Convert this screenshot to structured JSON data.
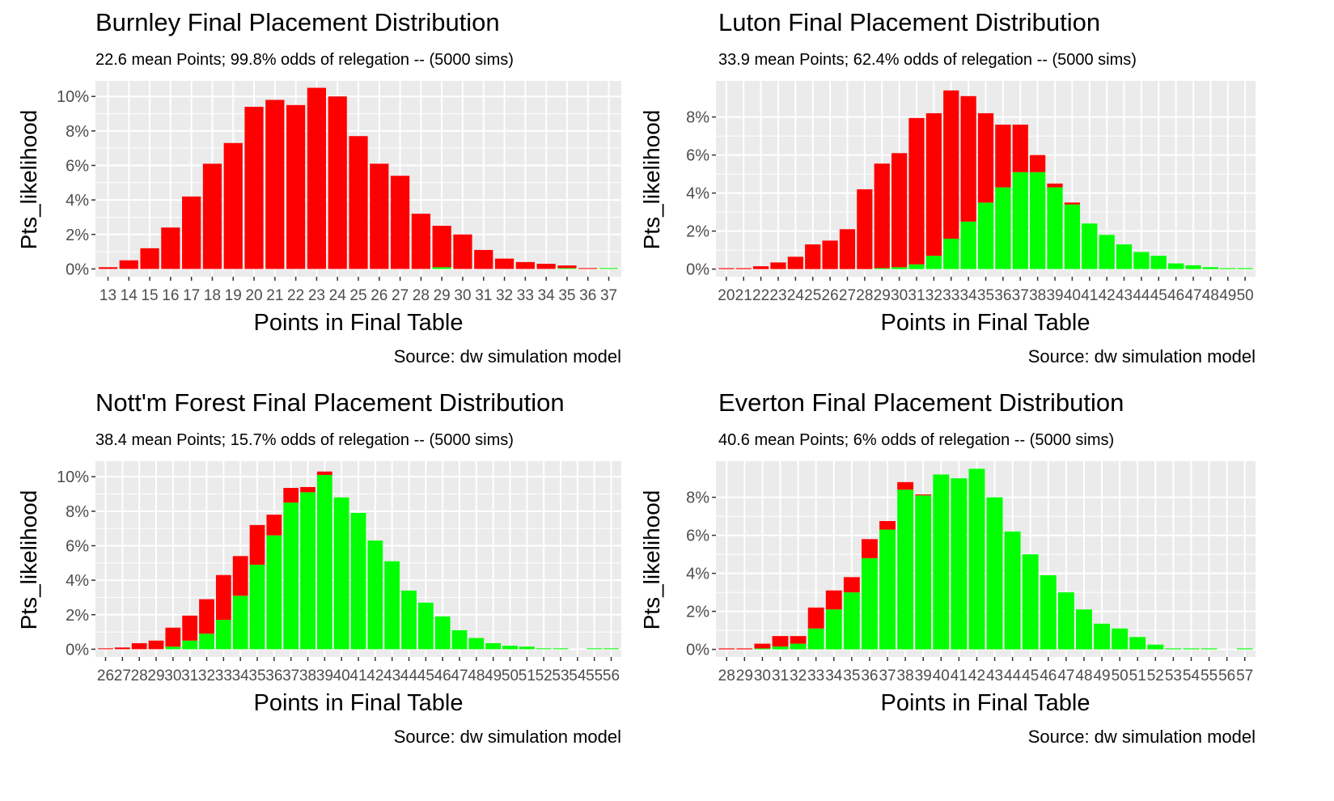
{
  "colors": {
    "relegated": "#ff0000",
    "safe": "#00ff00",
    "panel_bg": "#ebebeb",
    "grid": "#ffffff"
  },
  "common": {
    "xlabel": "Points in Final Table",
    "ylabel": "Pts_likelihood",
    "caption": "Source:  dw simulation model"
  },
  "chart_data": [
    {
      "type": "bar",
      "stacked": true,
      "title": "Burnley Final Placement Distribution",
      "subtitle": "22.6 mean Points; 99.8% odds of relegation -- (5000 sims)",
      "xlabel": "Points in Final Table",
      "ylabel": "Pts_likelihood",
      "caption": "Source:  dw simulation model",
      "categories": [
        "13",
        "14",
        "15",
        "16",
        "17",
        "18",
        "19",
        "20",
        "21",
        "22",
        "23",
        "24",
        "25",
        "26",
        "27",
        "28",
        "29",
        "30",
        "31",
        "32",
        "33",
        "34",
        "35",
        "36",
        "37"
      ],
      "series": [
        {
          "color": "safe",
          "values": [
            0,
            0,
            0,
            0,
            0,
            0,
            0,
            0,
            0,
            0,
            0,
            0,
            0,
            0,
            0,
            0,
            0.1,
            0,
            0,
            0,
            0,
            0,
            0.05,
            0,
            0.05
          ]
        },
        {
          "color": "relegated",
          "values": [
            0.1,
            0.5,
            1.2,
            2.4,
            4.2,
            6.1,
            7.3,
            9.4,
            9.8,
            9.5,
            10.5,
            10.0,
            7.7,
            6.1,
            5.4,
            3.2,
            2.4,
            2.0,
            1.1,
            0.6,
            0.4,
            0.3,
            0.15,
            0.05,
            0
          ]
        }
      ],
      "yticks": [
        0,
        2,
        4,
        6,
        8,
        10
      ],
      "yticklabels": [
        "0%",
        "2%",
        "4%",
        "6%",
        "8%",
        "10%"
      ],
      "ylim": [
        -0.45,
        10.9
      ],
      "xlim": [
        12.4,
        37.6
      ]
    },
    {
      "type": "bar",
      "stacked": true,
      "title": "Luton Final Placement Distribution",
      "subtitle": "33.9 mean Points; 62.4% odds of relegation -- (5000 sims)",
      "xlabel": "Points in Final Table",
      "ylabel": "Pts_likelihood",
      "caption": "Source:  dw simulation model",
      "categories": [
        "20",
        "21",
        "22",
        "23",
        "24",
        "25",
        "26",
        "27",
        "28",
        "29",
        "30",
        "31",
        "32",
        "33",
        "34",
        "35",
        "36",
        "37",
        "38",
        "39",
        "40",
        "41",
        "42",
        "43",
        "44",
        "45",
        "46",
        "47",
        "48",
        "49",
        "50"
      ],
      "series": [
        {
          "color": "safe",
          "values": [
            0,
            0,
            0,
            0,
            0,
            0,
            0,
            0,
            0,
            0.05,
            0.1,
            0.25,
            0.7,
            1.6,
            2.5,
            3.5,
            4.3,
            5.1,
            5.1,
            4.3,
            3.4,
            2.4,
            1.8,
            1.3,
            0.9,
            0.7,
            0.3,
            0.2,
            0.1,
            0.05,
            0.05
          ]
        },
        {
          "color": "relegated",
          "values": [
            0.05,
            0.05,
            0.15,
            0.35,
            0.65,
            1.3,
            1.5,
            2.1,
            4.2,
            5.5,
            6.0,
            7.7,
            7.5,
            7.8,
            6.6,
            4.7,
            3.3,
            2.5,
            0.9,
            0.2,
            0.1,
            0,
            0,
            0,
            0,
            0,
            0,
            0,
            0,
            0,
            0
          ]
        }
      ],
      "yticks": [
        0,
        2,
        4,
        6,
        8
      ],
      "yticklabels": [
        "0%",
        "2%",
        "4%",
        "6%",
        "8%"
      ],
      "ylim": [
        -0.4,
        9.9
      ],
      "xlim": [
        19.4,
        50.6
      ]
    },
    {
      "type": "bar",
      "stacked": true,
      "title": "Nott'm Forest Final Placement Distribution",
      "subtitle": "38.4 mean Points; 15.7% odds of relegation -- (5000 sims)",
      "xlabel": "Points in Final Table",
      "ylabel": "Pts_likelihood",
      "caption": "Source:  dw simulation model",
      "categories": [
        "26",
        "27",
        "28",
        "29",
        "30",
        "31",
        "32",
        "33",
        "34",
        "35",
        "36",
        "37",
        "38",
        "39",
        "40",
        "41",
        "42",
        "43",
        "44",
        "45",
        "46",
        "47",
        "48",
        "49",
        "50",
        "51",
        "52",
        "53",
        "54",
        "55",
        "56"
      ],
      "series": [
        {
          "color": "safe",
          "values": [
            0,
            0,
            0,
            0,
            0.15,
            0.5,
            0.9,
            1.7,
            3.1,
            4.9,
            6.6,
            8.5,
            9.1,
            10.1,
            8.8,
            7.9,
            6.3,
            5.1,
            3.4,
            2.7,
            1.9,
            1.1,
            0.65,
            0.35,
            0.2,
            0.15,
            0.05,
            0.05,
            0,
            0.05,
            0.05
          ]
        },
        {
          "color": "relegated",
          "values": [
            0.05,
            0.1,
            0.35,
            0.5,
            1.1,
            1.45,
            2.0,
            2.6,
            2.3,
            2.3,
            1.2,
            0.85,
            0.3,
            0.2,
            0,
            0,
            0,
            0,
            0,
            0,
            0,
            0,
            0,
            0,
            0,
            0,
            0,
            0,
            0,
            0,
            0
          ]
        }
      ],
      "yticks": [
        0,
        2,
        4,
        6,
        8,
        10
      ],
      "yticklabels": [
        "0%",
        "2%",
        "4%",
        "6%",
        "8%",
        "10%"
      ],
      "ylim": [
        -0.45,
        10.9
      ],
      "xlim": [
        25.4,
        56.6
      ]
    },
    {
      "type": "bar",
      "stacked": true,
      "title": "Everton Final Placement Distribution",
      "subtitle": "40.6 mean Points; 6% odds of relegation -- (5000 sims)",
      "xlabel": "Points in Final Table",
      "ylabel": "Pts_likelihood",
      "caption": "Source:  dw simulation model",
      "categories": [
        "28",
        "29",
        "30",
        "31",
        "32",
        "33",
        "34",
        "35",
        "36",
        "37",
        "38",
        "39",
        "40",
        "41",
        "42",
        "43",
        "44",
        "45",
        "46",
        "47",
        "48",
        "49",
        "50",
        "51",
        "52",
        "53",
        "54",
        "55",
        "56",
        "57"
      ],
      "series": [
        {
          "color": "safe",
          "values": [
            0,
            0,
            0.05,
            0.15,
            0.3,
            1.1,
            2.1,
            3.0,
            4.8,
            6.3,
            8.4,
            8.1,
            9.2,
            9.0,
            9.5,
            8.0,
            6.2,
            5.0,
            3.9,
            3.0,
            2.1,
            1.35,
            1.1,
            0.65,
            0.25,
            0.05,
            0.05,
            0.05,
            0,
            0.05
          ]
        },
        {
          "color": "relegated",
          "values": [
            0.05,
            0.05,
            0.25,
            0.55,
            0.4,
            1.1,
            1.0,
            0.8,
            1.0,
            0.45,
            0.4,
            0.05,
            0,
            0,
            0,
            0,
            0,
            0,
            0,
            0,
            0,
            0,
            0,
            0,
            0,
            0,
            0,
            0,
            0,
            0
          ]
        }
      ],
      "yticks": [
        0,
        2,
        4,
        6,
        8
      ],
      "yticklabels": [
        "0%",
        "2%",
        "4%",
        "6%",
        "8%"
      ],
      "ylim": [
        -0.4,
        9.9
      ],
      "xlim": [
        27.4,
        57.6
      ]
    }
  ]
}
